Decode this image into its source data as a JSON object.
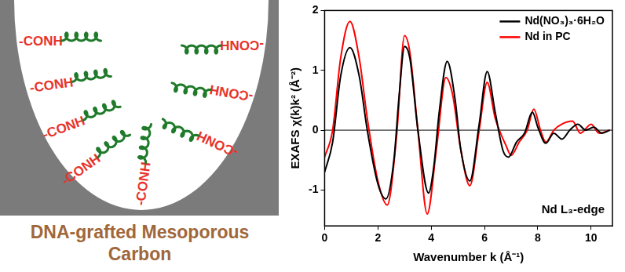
{
  "diagram": {
    "title": "DNA-grafted Mesoporous Carbon",
    "labels": [
      "-CONH",
      "-CONH",
      "-CONH",
      "-CONH",
      "-CONH",
      "-CONH",
      "-CONH",
      "-CONH"
    ]
  },
  "chart_data": {
    "type": "line",
    "x_label": "Wavenumber k (Å⁻¹)",
    "y_label": "EXAFS χ(k)k² (Å⁻²)",
    "annotation": "Nd L₃-edge",
    "xlim": [
      0,
      10.8
    ],
    "xticks": [
      0,
      2,
      4,
      6,
      8,
      10
    ],
    "ylim": [
      -1.6,
      2
    ],
    "yticks": [
      -1,
      0,
      1,
      2
    ],
    "hline": 0,
    "grid": false,
    "legend": "upper right",
    "series": [
      {
        "name": "Nd(NO₃)₃·6H₂O",
        "color": "#000000",
        "x": [
          0,
          0.3,
          0.6,
          0.95,
          1.3,
          1.6,
          2.0,
          2.3,
          2.6,
          2.8,
          3.0,
          3.2,
          3.5,
          3.9,
          4.1,
          4.3,
          4.6,
          4.9,
          5.1,
          5.45,
          5.8,
          6.1,
          6.4,
          6.7,
          6.9,
          7.2,
          7.5,
          7.8,
          8.0,
          8.3,
          8.6,
          8.9,
          9.2,
          9.5,
          9.8,
          10.1,
          10.4,
          10.7
        ],
        "values": [
          -0.7,
          -0.2,
          0.9,
          1.38,
          0.9,
          0.0,
          -0.9,
          -1.15,
          -0.5,
          0.6,
          1.4,
          1.2,
          0.0,
          -1.05,
          -0.6,
          0.3,
          1.15,
          0.5,
          -0.3,
          -0.85,
          0.1,
          0.98,
          0.3,
          -0.35,
          -0.45,
          -0.2,
          -0.05,
          0.3,
          0.05,
          -0.22,
          -0.05,
          -0.15,
          0.0,
          0.1,
          0.0,
          0.05,
          -0.05,
          0.0
        ]
      },
      {
        "name": "Nd in PC",
        "color": "#ff0000",
        "x": [
          0,
          0.3,
          0.6,
          0.95,
          1.3,
          1.6,
          2.0,
          2.35,
          2.7,
          3.0,
          3.2,
          3.5,
          3.85,
          4.2,
          4.55,
          4.8,
          5.1,
          5.45,
          5.8,
          6.1,
          6.4,
          6.8,
          7.0,
          7.3,
          7.6,
          7.85,
          8.1,
          8.3,
          8.6,
          8.9,
          9.3,
          9.6,
          10.0,
          10.3,
          10.7
        ],
        "values": [
          -0.45,
          0.0,
          1.2,
          1.82,
          1.2,
          0.2,
          -0.85,
          -1.25,
          -0.1,
          1.58,
          1.3,
          0.0,
          -1.4,
          -0.3,
          0.88,
          0.6,
          -0.3,
          -0.93,
          0.0,
          0.8,
          0.2,
          -0.25,
          -0.42,
          -0.2,
          0.0,
          0.35,
          0.0,
          -0.2,
          0.0,
          0.1,
          0.15,
          -0.05,
          0.1,
          -0.05,
          0.0
        ]
      }
    ]
  }
}
